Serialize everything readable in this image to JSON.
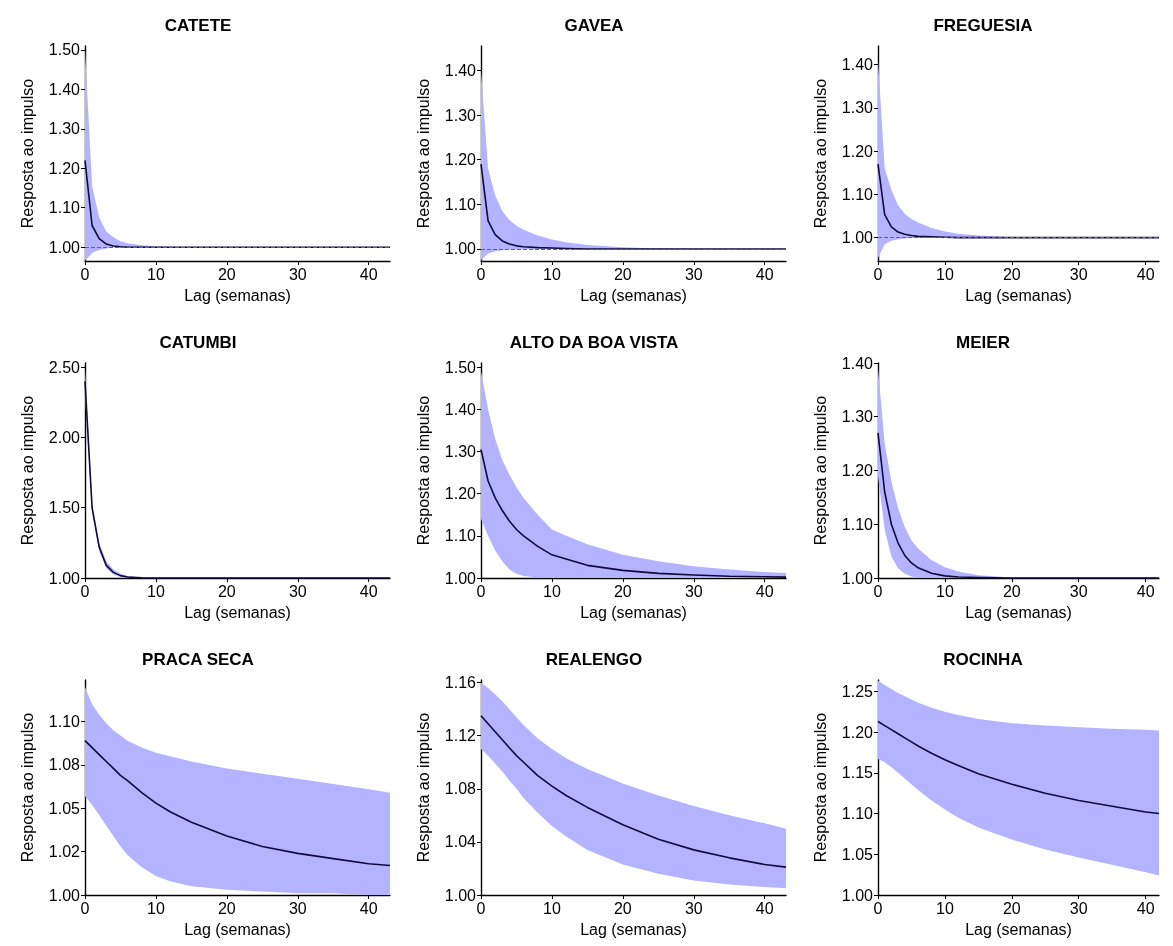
{
  "chart_data": [
    {
      "type": "line",
      "title": "CATETE",
      "xlabel": "Lag (semanas)",
      "ylabel": "Resposta ao impulso",
      "x": [
        0,
        1,
        2,
        3,
        4,
        5,
        6,
        8,
        10,
        12,
        15,
        20,
        25,
        30,
        35,
        40,
        43
      ],
      "xlim": [
        0,
        43
      ],
      "xticks": [
        0,
        10,
        20,
        30,
        40
      ],
      "ylim": [
        0.965,
        1.51
      ],
      "yticks": [
        {
          "value": 1.0,
          "label": "1.00"
        },
        {
          "value": 1.1,
          "label": "1.10"
        },
        {
          "value": 1.2,
          "label": "1.20"
        },
        {
          "value": 1.3,
          "label": "1.30"
        },
        {
          "value": 1.4,
          "label": "1.40"
        },
        {
          "value": 1.5,
          "label": "1.50"
        }
      ],
      "ref_lines": [
        {
          "axis": "y",
          "value": 1.0,
          "color": "#666666",
          "line_style": "dashed"
        }
      ],
      "series": [
        {
          "color": "#0f0b3c",
          "values": [
            1.22,
            1.055,
            1.022,
            1.008,
            1.003,
            1.001,
            1,
            1,
            1,
            1,
            1,
            1,
            1,
            1,
            1,
            1,
            1
          ],
          "upper": [
            1.5,
            1.155,
            1.075,
            1.04,
            1.025,
            1.015,
            1.01,
            1.005,
            1.002,
            1.001,
            1,
            1,
            1,
            1,
            1,
            1,
            1
          ],
          "lower": [
            0.966,
            0.985,
            0.993,
            0.997,
            0.999,
            1,
            1,
            1,
            1,
            1,
            1,
            1,
            1,
            1,
            1,
            1,
            1
          ]
        }
      ]
    },
    {
      "type": "line",
      "title": "GAVEA",
      "xlabel": "Lag (semanas)",
      "ylabel": "Resposta ao impulso",
      "x": [
        0,
        1,
        2,
        3,
        4,
        5,
        6,
        8,
        10,
        12,
        15,
        20,
        25,
        30,
        35,
        40,
        43
      ],
      "xlim": [
        0,
        43
      ],
      "xticks": [
        0,
        10,
        20,
        30,
        40
      ],
      "ylim": [
        0.973,
        1.455
      ],
      "yticks": [
        {
          "value": 1.0,
          "label": "1.00"
        },
        {
          "value": 1.1,
          "label": "1.10"
        },
        {
          "value": 1.2,
          "label": "1.20"
        },
        {
          "value": 1.3,
          "label": "1.30"
        },
        {
          "value": 1.4,
          "label": "1.40"
        }
      ],
      "ref_lines": [
        {
          "axis": "y",
          "value": 1.0,
          "color": "#666666",
          "line_style": "dashed"
        }
      ],
      "series": [
        {
          "color": "#0f0b3c",
          "values": [
            1.19,
            1.063,
            1.032,
            1.018,
            1.011,
            1.007,
            1.005,
            1.003,
            1.002,
            1.001,
            1,
            1,
            1,
            1,
            1,
            1,
            1
          ],
          "upper": [
            1.4,
            1.18,
            1.12,
            1.085,
            1.065,
            1.052,
            1.043,
            1.03,
            1.021,
            1.015,
            1.009,
            1.004,
            1.001,
            1,
            1,
            1,
            1
          ],
          "lower": [
            0.975,
            0.99,
            0.995,
            0.997,
            0.998,
            0.999,
            1,
            1,
            1,
            1,
            1,
            1,
            1,
            1,
            1,
            1,
            1
          ]
        }
      ]
    },
    {
      "type": "line",
      "title": "FREGUESIA",
      "xlabel": "Lag (semanas)",
      "ylabel": "Resposta ao impulso",
      "x": [
        0,
        1,
        2,
        3,
        4,
        5,
        6,
        8,
        10,
        12,
        15,
        20,
        25,
        30,
        35,
        40,
        42
      ],
      "xlim": [
        0,
        42
      ],
      "xticks": [
        0,
        10,
        20,
        30,
        40
      ],
      "ylim": [
        0.946,
        1.443
      ],
      "yticks": [
        {
          "value": 1.0,
          "label": "1.00"
        },
        {
          "value": 1.1,
          "label": "1.10"
        },
        {
          "value": 1.2,
          "label": "1.20"
        },
        {
          "value": 1.3,
          "label": "1.30"
        },
        {
          "value": 1.4,
          "label": "1.40"
        }
      ],
      "ref_lines": [
        {
          "axis": "y",
          "value": 1.0,
          "color": "#666666",
          "line_style": "dashed"
        }
      ],
      "series": [
        {
          "color": "#0f0b3c",
          "values": [
            1.17,
            1.053,
            1.025,
            1.013,
            1.008,
            1.005,
            1.003,
            1.002,
            1.001,
            1,
            1,
            1,
            1,
            1,
            1,
            1,
            1
          ],
          "upper": [
            1.41,
            1.16,
            1.11,
            1.075,
            1.055,
            1.043,
            1.035,
            1.022,
            1.014,
            1.009,
            1.005,
            1.001,
            1,
            1,
            1,
            1,
            1
          ],
          "lower": [
            0.953,
            0.985,
            0.993,
            0.996,
            0.998,
            0.999,
            1,
            1,
            1,
            1,
            1,
            1,
            1,
            1,
            1,
            1,
            1
          ]
        }
      ]
    },
    {
      "type": "line",
      "title": "CATUMBI",
      "xlabel": "Lag (semanas)",
      "ylabel": "Resposta ao impulso",
      "x": [
        0,
        1,
        2,
        3,
        4,
        5,
        6,
        8,
        10,
        12,
        15,
        20,
        25,
        30,
        35,
        40,
        43
      ],
      "xlim": [
        0,
        43
      ],
      "xticks": [
        0,
        10,
        20,
        30,
        40
      ],
      "ylim": [
        1.0,
        2.53
      ],
      "yticks": [
        {
          "value": 1.0,
          "label": "1.00"
        },
        {
          "value": 1.5,
          "label": "1.50"
        },
        {
          "value": 2.0,
          "label": "2.00"
        },
        {
          "value": 2.5,
          "label": "2.50"
        }
      ],
      "series": [
        {
          "color": "#0f0b3c",
          "values": [
            2.4,
            1.5,
            1.22,
            1.09,
            1.04,
            1.017,
            1.007,
            1.001,
            1,
            1,
            1,
            1,
            1,
            1,
            1,
            1,
            1
          ],
          "upper": [
            2.48,
            1.53,
            1.25,
            1.12,
            1.06,
            1.03,
            1.015,
            1.004,
            1.001,
            1,
            1,
            1,
            1,
            1,
            1,
            1,
            1
          ],
          "lower": [
            2.3,
            1.47,
            1.19,
            1.07,
            1.025,
            1.008,
            1.002,
            1,
            1,
            1,
            1,
            1,
            1,
            1,
            1,
            1,
            1
          ]
        }
      ]
    },
    {
      "type": "line",
      "title": "ALTO DA BOA VISTA",
      "xlabel": "Lag (semanas)",
      "ylabel": "Resposta ao impulso",
      "x": [
        0,
        1,
        2,
        3,
        4,
        5,
        6,
        8,
        10,
        12,
        15,
        20,
        25,
        30,
        35,
        40,
        43
      ],
      "xlim": [
        0,
        43
      ],
      "xticks": [
        0,
        10,
        20,
        30,
        40
      ],
      "ylim": [
        1.0,
        1.51
      ],
      "yticks": [
        {
          "value": 1.0,
          "label": "1.00"
        },
        {
          "value": 1.1,
          "label": "1.10"
        },
        {
          "value": 1.2,
          "label": "1.20"
        },
        {
          "value": 1.3,
          "label": "1.30"
        },
        {
          "value": 1.4,
          "label": "1.40"
        },
        {
          "value": 1.5,
          "label": "1.50"
        }
      ],
      "series": [
        {
          "color": "#0f0b3c",
          "values": [
            1.305,
            1.23,
            1.19,
            1.16,
            1.135,
            1.115,
            1.1,
            1.075,
            1.055,
            1.045,
            1.03,
            1.018,
            1.011,
            1.007,
            1.004,
            1.003,
            1.002
          ],
          "upper": [
            1.49,
            1.4,
            1.33,
            1.28,
            1.245,
            1.215,
            1.19,
            1.15,
            1.115,
            1.1,
            1.08,
            1.055,
            1.04,
            1.028,
            1.02,
            1.014,
            1.012
          ],
          "lower": [
            1.14,
            1.1,
            1.065,
            1.04,
            1.02,
            1.01,
            1.005,
            1.001,
            1,
            1,
            1,
            1,
            1,
            1,
            1,
            1,
            1
          ]
        }
      ]
    },
    {
      "type": "line",
      "title": "MEIER",
      "xlabel": "Lag (semanas)",
      "ylabel": "Resposta ao impulso",
      "x": [
        0,
        1,
        2,
        3,
        4,
        5,
        6,
        8,
        10,
        12,
        15,
        20,
        25,
        30,
        35,
        40,
        42
      ],
      "xlim": [
        0,
        42
      ],
      "xticks": [
        0,
        10,
        20,
        30,
        40
      ],
      "ylim": [
        1.0,
        1.4
      ],
      "yticks": [
        {
          "value": 1.0,
          "label": "1.00"
        },
        {
          "value": 1.1,
          "label": "1.10"
        },
        {
          "value": 1.2,
          "label": "1.20"
        },
        {
          "value": 1.3,
          "label": "1.30"
        },
        {
          "value": 1.4,
          "label": "1.40"
        }
      ],
      "series": [
        {
          "color": "#0f0b3c",
          "values": [
            1.27,
            1.16,
            1.1,
            1.065,
            1.042,
            1.028,
            1.019,
            1.009,
            1.004,
            1.002,
            1.001,
            1,
            1,
            1,
            1,
            1,
            1
          ],
          "upper": [
            1.39,
            1.25,
            1.18,
            1.13,
            1.095,
            1.07,
            1.055,
            1.033,
            1.02,
            1.012,
            1.005,
            1.001,
            1,
            1,
            1,
            1,
            1
          ],
          "lower": [
            1.19,
            1.09,
            1.04,
            1.018,
            1.008,
            1.003,
            1.001,
            1,
            1,
            1,
            1,
            1,
            1,
            1,
            1,
            1,
            1
          ]
        }
      ]
    },
    {
      "type": "line",
      "title": "PRACA SECA",
      "xlabel": "Lag (semanas)",
      "ylabel": "Resposta ao impulso",
      "x": [
        0,
        1,
        2,
        3,
        4,
        5,
        6,
        8,
        10,
        12,
        15,
        20,
        25,
        30,
        35,
        40,
        43
      ],
      "xlim": [
        0,
        43
      ],
      "xticks": [
        0,
        10,
        20,
        30,
        40
      ],
      "ylim": [
        1.0,
        1.124
      ],
      "yticks": [
        {
          "value": 1.0,
          "label": "1.00"
        },
        {
          "value": 1.025,
          "label": "1.02"
        },
        {
          "value": 1.05,
          "label": "1.05"
        },
        {
          "value": 1.075,
          "label": "1.08"
        },
        {
          "value": 1.1,
          "label": "1.10"
        }
      ],
      "series": [
        {
          "color": "#0f0b3c",
          "values": [
            1.089,
            1.085,
            1.081,
            1.077,
            1.073,
            1.069,
            1.066,
            1.059,
            1.053,
            1.048,
            1.042,
            1.034,
            1.028,
            1.024,
            1.021,
            1.018,
            1.017
          ],
          "upper": [
            1.12,
            1.11,
            1.104,
            1.099,
            1.095,
            1.092,
            1.089,
            1.085,
            1.082,
            1.08,
            1.077,
            1.073,
            1.07,
            1.067,
            1.064,
            1.061,
            1.059
          ],
          "lower": [
            1.057,
            1.052,
            1.046,
            1.04,
            1.034,
            1.028,
            1.023,
            1.016,
            1.011,
            1.008,
            1.005,
            1.003,
            1.002,
            1.001,
            1.001,
            1,
            1
          ]
        }
      ]
    },
    {
      "type": "line",
      "title": "REALENGO",
      "xlabel": "Lag (semanas)",
      "ylabel": "Resposta ao impulso",
      "x": [
        0,
        1,
        2,
        3,
        4,
        5,
        6,
        8,
        10,
        12,
        15,
        20,
        25,
        30,
        35,
        40,
        43
      ],
      "xlim": [
        0,
        43
      ],
      "xticks": [
        0,
        10,
        20,
        30,
        40
      ],
      "ylim": [
        1.0,
        1.162
      ],
      "yticks": [
        {
          "value": 1.0,
          "label": "1.00"
        },
        {
          "value": 1.04,
          "label": "1.04"
        },
        {
          "value": 1.08,
          "label": "1.08"
        },
        {
          "value": 1.12,
          "label": "1.12"
        },
        {
          "value": 1.16,
          "label": "1.16"
        }
      ],
      "series": [
        {
          "color": "#0f0b3c",
          "values": [
            1.135,
            1.129,
            1.123,
            1.117,
            1.111,
            1.105,
            1.1,
            1.09,
            1.082,
            1.075,
            1.066,
            1.053,
            1.042,
            1.034,
            1.028,
            1.023,
            1.021
          ],
          "upper": [
            1.16,
            1.156,
            1.151,
            1.146,
            1.14,
            1.134,
            1.128,
            1.118,
            1.11,
            1.103,
            1.095,
            1.084,
            1.075,
            1.067,
            1.06,
            1.054,
            1.05
          ],
          "lower": [
            1.11,
            1.105,
            1.099,
            1.093,
            1.086,
            1.08,
            1.073,
            1.062,
            1.052,
            1.044,
            1.034,
            1.023,
            1.016,
            1.011,
            1.008,
            1.006,
            1.005
          ]
        }
      ]
    },
    {
      "type": "line",
      "title": "ROCINHA",
      "xlabel": "Lag (semanas)",
      "ylabel": "Resposta ao impulso",
      "x": [
        0,
        1,
        2,
        3,
        4,
        5,
        6,
        8,
        10,
        12,
        15,
        20,
        25,
        30,
        35,
        40,
        42
      ],
      "xlim": [
        0,
        42
      ],
      "xticks": [
        0,
        10,
        20,
        30,
        40
      ],
      "ylim": [
        1.0,
        1.264
      ],
      "yticks": [
        {
          "value": 1.0,
          "label": "1.00"
        },
        {
          "value": 1.05,
          "label": "1.05"
        },
        {
          "value": 1.1,
          "label": "1.10"
        },
        {
          "value": 1.15,
          "label": "1.15"
        },
        {
          "value": 1.2,
          "label": "1.20"
        },
        {
          "value": 1.25,
          "label": "1.25"
        }
      ],
      "series": [
        {
          "color": "#0f0b3c",
          "values": [
            1.213,
            1.208,
            1.203,
            1.198,
            1.193,
            1.188,
            1.183,
            1.174,
            1.166,
            1.159,
            1.149,
            1.136,
            1.125,
            1.116,
            1.109,
            1.102,
            1.1
          ],
          "upper": [
            1.263,
            1.258,
            1.253,
            1.248,
            1.244,
            1.24,
            1.236,
            1.23,
            1.225,
            1.221,
            1.216,
            1.211,
            1.208,
            1.206,
            1.204,
            1.203,
            1.202
          ],
          "lower": [
            1.167,
            1.163,
            1.157,
            1.15,
            1.143,
            1.136,
            1.129,
            1.116,
            1.105,
            1.095,
            1.083,
            1.068,
            1.056,
            1.046,
            1.037,
            1.028,
            1.024
          ]
        }
      ]
    }
  ]
}
